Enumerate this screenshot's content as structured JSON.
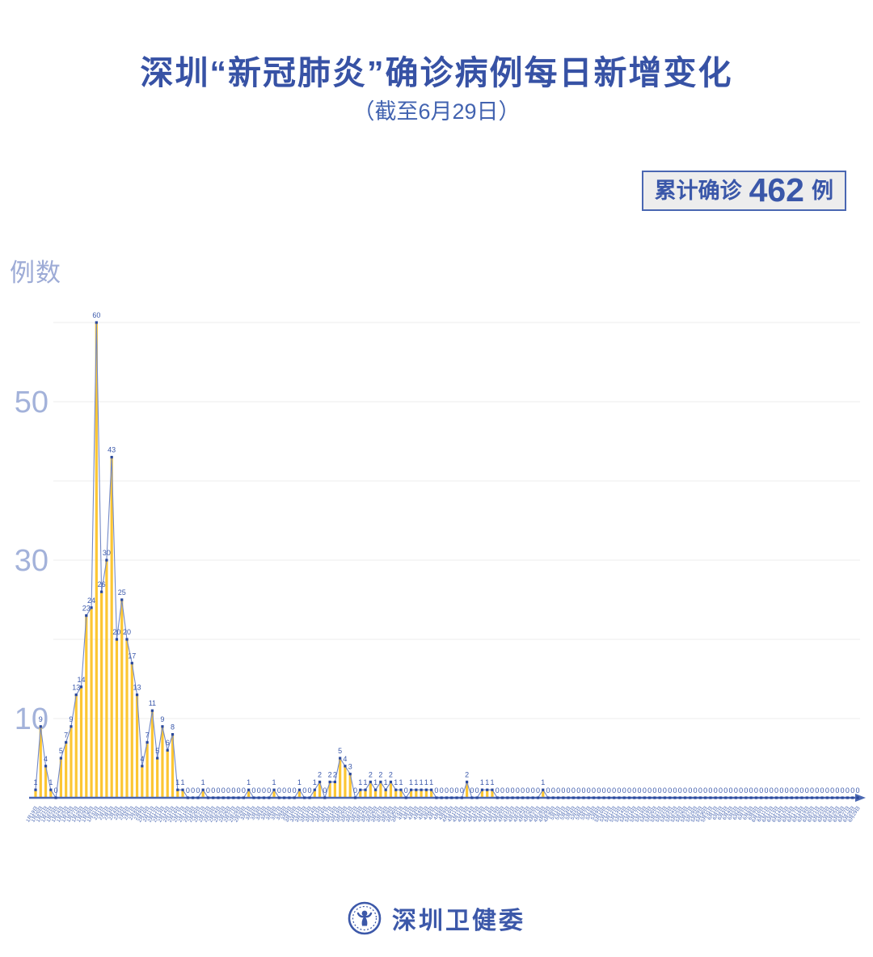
{
  "title": "深圳“新冠肺炎”确诊病例每日新增变化",
  "subtitle": "（截至6月29日）",
  "badge": {
    "prefix": "累计确诊",
    "value": "462",
    "suffix": "例"
  },
  "y_axis_label": "例数",
  "footer": {
    "org": "深圳卫健委",
    "logo_icon": "shenzhen-health-commission-emblem"
  },
  "colors": {
    "title": "#3752a5",
    "subtitle": "#4263b0",
    "badge_border": "#4a67b2",
    "badge_bg": "#ededed",
    "bar": "#fcc633",
    "line": "#7389c7",
    "marker": "#2b499c",
    "value_label": "#3a58ab",
    "date_label": "#4160ae",
    "axis": "#4a67b2",
    "grid": "#ececec",
    "tick_label": "#a3b2da"
  },
  "chart_data": {
    "type": "bar+line",
    "title": "深圳“新冠肺炎”确诊病例每日新增变化（截至6月29日）",
    "xlabel": "",
    "ylabel": "例数",
    "ylim": [
      0,
      62
    ],
    "gridlines": [
      10,
      20,
      30,
      40,
      50,
      60
    ],
    "yticks_labeled": [
      10,
      30,
      50
    ],
    "legend": "none",
    "cumulative_total": 462,
    "x": [
      "1月19日",
      "1月20日",
      "1月21日",
      "1月22日",
      "1月23日",
      "1月24日",
      "1月25日",
      "1月26日",
      "1月27日",
      "1月28日",
      "1月29日",
      "1月30日",
      "1月31日",
      "2月1日",
      "2月2日",
      "2月3日",
      "2月4日",
      "2月5日",
      "2月6日",
      "2月7日",
      "2月8日",
      "2月9日",
      "2月10日",
      "2月11日",
      "2月12日",
      "2月13日",
      "2月14日",
      "2月15日",
      "2月16日",
      "2月17日",
      "2月18日",
      "2月19日",
      "2月20日",
      "2月21日",
      "2月22日",
      "2月23日",
      "2月24日",
      "2月25日",
      "2月26日",
      "2月27日",
      "2月28日",
      "2月29日",
      "3月1日",
      "3月2日",
      "3月3日",
      "3月4日",
      "3月5日",
      "3月6日",
      "3月7日",
      "3月8日",
      "3月9日",
      "3月10日",
      "3月11日",
      "3月12日",
      "3月13日",
      "3月14日",
      "3月15日",
      "3月16日",
      "3月17日",
      "3月18日",
      "3月19日",
      "3月20日",
      "3月21日",
      "3月22日",
      "3月23日",
      "3月24日",
      "3月25日",
      "3月26日",
      "3月27日",
      "3月28日",
      "3月29日",
      "3月30日",
      "3月31日",
      "4月1日",
      "4月2日",
      "4月3日",
      "4月4日",
      "4月5日",
      "4月6日",
      "4月7日",
      "4月8日",
      "4月9日",
      "4月10日",
      "4月11日",
      "4月12日",
      "4月13日",
      "4月14日",
      "4月15日",
      "4月16日",
      "4月17日",
      "4月18日",
      "4月19日",
      "4月20日",
      "4月21日",
      "4月22日",
      "4月23日",
      "4月24日",
      "4月25日",
      "4月26日",
      "4月27日",
      "4月28日",
      "4月29日",
      "4月30日",
      "5月1日",
      "5月2日",
      "5月3日",
      "5月4日",
      "5月5日",
      "5月6日",
      "5月7日",
      "5月8日",
      "5月9日",
      "5月10日",
      "5月11日",
      "5月12日",
      "5月13日",
      "5月14日",
      "5月15日",
      "5月16日",
      "5月17日",
      "5月18日",
      "5月19日",
      "5月20日",
      "5月21日",
      "5月22日",
      "5月23日",
      "5月24日",
      "5月25日",
      "5月26日",
      "5月27日",
      "5月28日",
      "5月29日",
      "5月30日",
      "5月31日",
      "6月1日",
      "6月2日",
      "6月3日",
      "6月4日",
      "6月5日",
      "6月6日",
      "6月7日",
      "6月8日",
      "6月9日",
      "6月10日",
      "6月11日",
      "6月12日",
      "6月13日",
      "6月14日",
      "6月15日",
      "6月16日",
      "6月17日",
      "6月18日",
      "6月19日",
      "6月20日",
      "6月21日",
      "6月22日",
      "6月23日",
      "6月24日",
      "6月25日",
      "6月26日",
      "6月27日",
      "6月28日",
      "6月29日"
    ],
    "values": [
      1,
      9,
      4,
      1,
      0,
      5,
      7,
      9,
      13,
      14,
      23,
      24,
      60,
      26,
      30,
      43,
      20,
      25,
      20,
      17,
      13,
      4,
      7,
      11,
      5,
      9,
      6,
      8,
      1,
      1,
      0,
      0,
      0,
      1,
      0,
      0,
      0,
      0,
      0,
      0,
      0,
      0,
      1,
      0,
      0,
      0,
      0,
      1,
      0,
      0,
      0,
      0,
      1,
      0,
      0,
      1,
      2,
      0,
      2,
      2,
      5,
      4,
      3,
      0,
      1,
      1,
      2,
      1,
      2,
      1,
      2,
      1,
      1,
      0,
      1,
      1,
      1,
      1,
      1,
      0,
      0,
      0,
      0,
      0,
      0,
      2,
      0,
      0,
      1,
      1,
      1,
      0,
      0,
      0,
      0,
      0,
      0,
      0,
      0,
      0,
      1,
      0,
      0,
      0,
      0,
      0,
      0,
      0,
      0,
      0,
      0,
      0,
      0,
      0,
      0,
      0,
      0,
      0,
      0,
      0,
      0,
      0,
      0,
      0,
      0,
      0,
      0,
      0,
      0,
      0,
      0,
      0,
      0,
      0,
      0,
      0,
      0,
      0,
      0,
      0,
      0,
      0,
      0,
      0,
      0,
      0,
      0,
      0,
      0,
      0,
      0,
      0,
      0,
      0,
      0,
      0,
      0,
      0,
      0,
      0,
      0,
      0,
      0
    ]
  }
}
